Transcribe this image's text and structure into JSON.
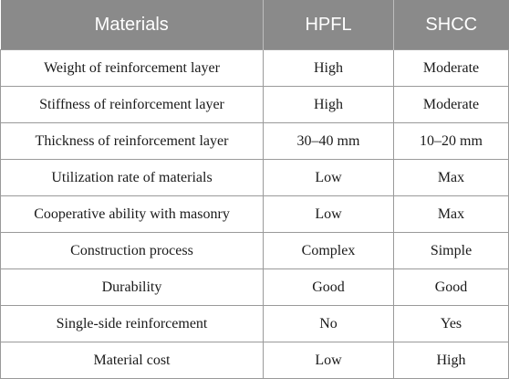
{
  "table": {
    "headers": [
      "Materials",
      "HPFL",
      "SHCC"
    ],
    "rows": [
      [
        "Weight of reinforcement layer",
        "High",
        "Moderate"
      ],
      [
        "Stiffness of reinforcement layer",
        "High",
        "Moderate"
      ],
      [
        "Thickness of reinforcement layer",
        "30–40 mm",
        "10–20 mm"
      ],
      [
        "Utilization rate of materials",
        "Low",
        "Max"
      ],
      [
        "Cooperative ability with masonry",
        "Low",
        "Max"
      ],
      [
        "Construction process",
        "Complex",
        "Simple"
      ],
      [
        "Durability",
        "Good",
        "Good"
      ],
      [
        "Single-side reinforcement",
        "No",
        "Yes"
      ],
      [
        "Material cost",
        "Low",
        "High"
      ]
    ]
  }
}
